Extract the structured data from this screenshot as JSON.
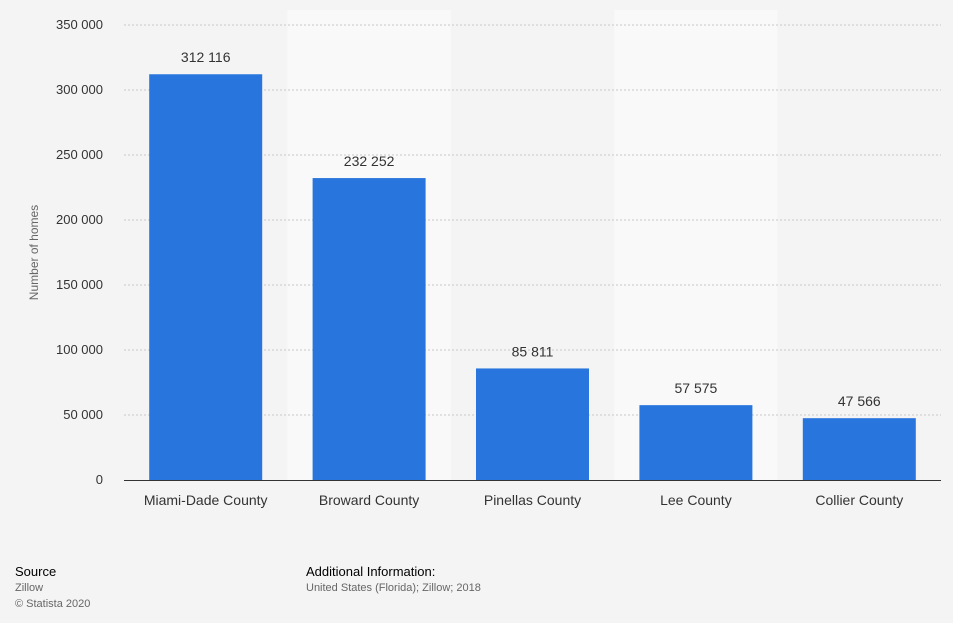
{
  "chart_data": {
    "type": "bar",
    "categories": [
      "Miami-Dade County",
      "Broward County",
      "Pinellas County",
      "Lee County",
      "Collier County"
    ],
    "values": [
      312116,
      232252,
      85811,
      57575,
      47566
    ],
    "data_labels": [
      "312 116",
      "232 252",
      "85 811",
      "57 575",
      "47 566"
    ],
    "title": "",
    "xlabel": "",
    "ylabel": "Number of homes",
    "ylim": [
      0,
      350000
    ],
    "yticks": [
      0,
      50000,
      100000,
      150000,
      200000,
      250000,
      300000,
      350000
    ],
    "ytick_labels": [
      "0",
      "50 000",
      "100 000",
      "150 000",
      "200 000",
      "250 000",
      "300 000",
      "350 000"
    ],
    "grid": true,
    "bar_color": "#2876dd"
  },
  "footer": {
    "source_title": "Source",
    "source_name": "Zillow",
    "copyright": "© Statista 2020",
    "additional_title": "Additional Information:",
    "additional_text": "United States (Florida); Zillow; 2018"
  }
}
